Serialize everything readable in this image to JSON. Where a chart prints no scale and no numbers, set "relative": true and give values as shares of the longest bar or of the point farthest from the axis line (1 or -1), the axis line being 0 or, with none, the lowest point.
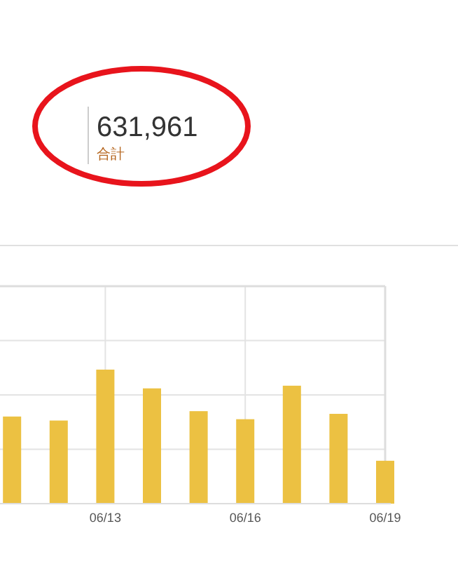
{
  "chart_data": [
    {
      "type": "other",
      "title": "631,961",
      "subtitle": "合計"
    },
    {
      "type": "bar",
      "relative": true,
      "categories": [
        null,
        null,
        "06/13",
        null,
        null,
        "06/16",
        null,
        null,
        "06/19"
      ],
      "values": [
        0.65,
        0.62,
        1,
        0.86,
        0.69,
        0.63,
        0.88,
        0.67,
        0.32
      ],
      "color": "#ecc142",
      "grid": true
    }
  ]
}
